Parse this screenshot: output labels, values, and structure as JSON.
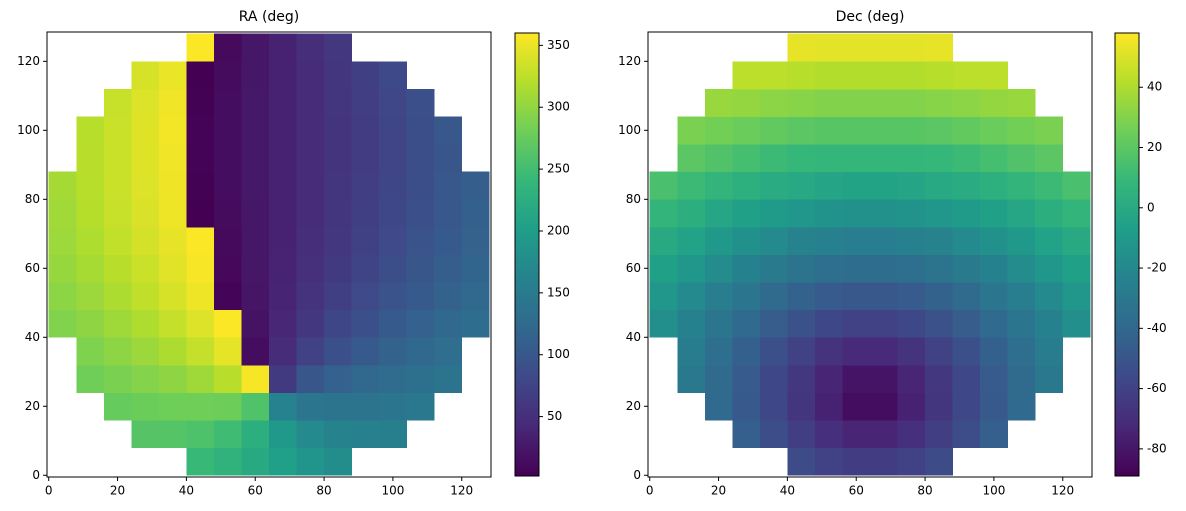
{
  "chart_data": [
    {
      "type": "heatmap",
      "title": "RA (deg)",
      "x": [
        4,
        12,
        20,
        28,
        36,
        44,
        52,
        60,
        68,
        76,
        84,
        92,
        100,
        108,
        116,
        124
      ],
      "y": [
        4,
        12,
        20,
        28,
        36,
        44,
        52,
        60,
        68,
        76,
        84,
        92,
        100,
        108,
        116,
        124
      ],
      "values": [
        [
          null,
          null,
          null,
          null,
          null,
          243,
          233,
          218,
          202,
          187,
          177,
          null,
          null,
          null,
          null,
          null
        ],
        [
          null,
          null,
          null,
          264,
          263,
          258,
          248,
          226,
          194,
          172,
          162,
          158,
          156,
          null,
          null,
          null
        ],
        [
          null,
          null,
          275,
          278,
          280,
          281,
          279,
          259,
          161,
          141,
          139,
          140,
          142,
          146,
          null,
          null
        ],
        [
          null,
          281,
          287,
          293,
          299,
          308,
          322,
          356,
          64,
          98,
          112,
          121,
          128,
          134,
          139,
          null
        ],
        [
          null,
          290,
          298,
          306,
          316,
          329,
          347,
          14,
          46,
          73,
          91,
          104,
          114,
          122,
          130,
          null
        ],
        [
          291,
          299,
          308,
          317,
          329,
          342,
          359,
          19,
          41,
          61,
          78,
          91,
          103,
          112,
          121,
          129
        ],
        [
          297,
          306,
          316,
          326,
          338,
          351,
          5,
          22,
          38,
          55,
          69,
          83,
          94,
          104,
          114,
          123
        ],
        [
          303,
          312,
          322,
          332,
          344,
          356,
          9,
          23,
          37,
          51,
          64,
          76,
          88,
          98,
          108,
          117
        ],
        [
          307,
          317,
          327,
          337,
          348,
          359,
          11,
          24,
          36,
          49,
          61,
          72,
          83,
          94,
          104,
          113
        ],
        [
          309,
          320,
          330,
          340,
          351,
          2,
          13,
          24,
          36,
          47,
          58,
          69,
          80,
          90,
          100,
          111
        ],
        [
          311,
          321,
          332,
          342,
          352,
          3,
          14,
          25,
          35,
          46,
          57,
          68,
          78,
          88,
          99,
          109
        ],
        [
          null,
          322,
          332,
          343,
          353,
          4,
          14,
          25,
          35,
          46,
          56,
          67,
          77,
          88,
          98,
          null
        ],
        [
          null,
          321,
          332,
          343,
          354,
          4,
          14,
          25,
          35,
          46,
          56,
          67,
          77,
          88,
          99,
          null
        ],
        [
          null,
          null,
          330,
          342,
          353,
          3,
          14,
          25,
          35,
          46,
          57,
          68,
          79,
          90,
          null,
          null
        ],
        [
          null,
          null,
          null,
          338,
          350,
          2,
          13,
          24,
          36,
          47,
          58,
          70,
          82,
          null,
          null,
          null
        ],
        [
          null,
          null,
          null,
          null,
          null,
          359,
          11,
          24,
          36,
          49,
          61,
          null,
          null,
          null,
          null,
          null
        ]
      ],
      "xlim": [
        -0.5,
        128.5
      ],
      "ylim": [
        -0.5,
        128.5
      ],
      "xticks": [
        0,
        20,
        40,
        60,
        80,
        100,
        120
      ],
      "yticks": [
        0,
        20,
        40,
        60,
        80,
        100,
        120
      ],
      "colorbar": {
        "lim": [
          2,
          360
        ],
        "ticks": [
          50,
          100,
          150,
          200,
          250,
          300,
          350
        ]
      },
      "colormap": [
        "#440154",
        "#482878",
        "#3e4989",
        "#31688e",
        "#26828e",
        "#1f9e89",
        "#35b779",
        "#6ece58",
        "#b5de2b",
        "#fde725"
      ]
    },
    {
      "type": "heatmap",
      "title": "Dec (deg)",
      "x": [
        4,
        12,
        20,
        28,
        36,
        44,
        52,
        60,
        68,
        76,
        84,
        92,
        100,
        108,
        116,
        124
      ],
      "y": [
        4,
        12,
        20,
        28,
        36,
        44,
        52,
        60,
        68,
        76,
        84,
        92,
        100,
        108,
        116,
        124
      ],
      "values": [
        [
          null,
          null,
          null,
          null,
          null,
          -55,
          -60,
          -63,
          -63,
          -60,
          -55,
          null,
          null,
          null,
          null,
          null
        ],
        [
          null,
          null,
          null,
          -45,
          -54,
          -62,
          -69,
          -74,
          -74,
          -69,
          -62,
          -54,
          -45,
          null,
          null,
          null
        ],
        [
          null,
          null,
          -39,
          -48,
          -57,
          -66,
          -75,
          -84,
          -84,
          -75,
          -66,
          -57,
          -48,
          -39,
          null,
          null
        ],
        [
          null,
          -30,
          -38,
          -47,
          -57,
          -65,
          -74,
          -81,
          -81,
          -74,
          -65,
          -57,
          -47,
          -38,
          -30,
          null
        ],
        [
          null,
          -28,
          -36,
          -44,
          -53,
          -60,
          -67,
          -71,
          -71,
          -67,
          -60,
          -53,
          -44,
          -36,
          -28,
          null
        ],
        [
          -16,
          -24,
          -32,
          -39,
          -46,
          -52,
          -57,
          -60,
          -60,
          -57,
          -52,
          -46,
          -39,
          -32,
          -24,
          -16
        ],
        [
          -12,
          -19,
          -26,
          -32,
          -38,
          -43,
          -47,
          -49,
          -49,
          -47,
          -43,
          -38,
          -32,
          -26,
          -19,
          -12
        ],
        [
          -6,
          -12,
          -18,
          -24,
          -29,
          -33,
          -36,
          -37,
          -37,
          -36,
          -33,
          -29,
          -24,
          -18,
          -12,
          -6
        ],
        [
          0,
          -5,
          -10,
          -15,
          -19,
          -23,
          -25,
          -26,
          -26,
          -25,
          -23,
          -19,
          -15,
          -10,
          -5,
          0
        ],
        [
          7,
          3,
          -2,
          -6,
          -9,
          -12,
          -14,
          -15,
          -15,
          -14,
          -12,
          -9,
          -6,
          -2,
          3,
          7
        ],
        [
          15,
          11,
          7,
          4,
          1,
          -1,
          -3,
          -4,
          -4,
          -3,
          -1,
          1,
          4,
          7,
          11,
          15
        ],
        [
          null,
          20,
          17,
          14,
          11,
          9,
          8,
          8,
          8,
          8,
          9,
          11,
          14,
          17,
          20,
          null
        ],
        [
          null,
          28,
          26,
          24,
          22,
          20,
          19,
          19,
          19,
          19,
          20,
          22,
          24,
          26,
          28,
          null
        ],
        [
          null,
          null,
          35,
          34,
          32,
          31,
          30,
          30,
          30,
          30,
          31,
          32,
          34,
          35,
          null,
          null
        ],
        [
          null,
          null,
          null,
          43,
          43,
          42,
          41,
          41,
          41,
          41,
          42,
          43,
          43,
          null,
          null,
          null
        ],
        [
          null,
          null,
          null,
          null,
          null,
          53,
          52,
          52,
          52,
          52,
          53,
          null,
          null,
          null,
          null,
          null
        ]
      ],
      "xlim": [
        -0.5,
        128.5
      ],
      "ylim": [
        -0.5,
        128.5
      ],
      "xticks": [
        0,
        20,
        40,
        60,
        80,
        100,
        120
      ],
      "yticks": [
        0,
        20,
        40,
        60,
        80,
        100,
        120
      ],
      "colorbar": {
        "lim": [
          -89,
          58
        ],
        "ticks": [
          -80,
          -60,
          -40,
          -20,
          0,
          20,
          40
        ]
      },
      "colormap": [
        "#440154",
        "#482878",
        "#3e4989",
        "#31688e",
        "#26828e",
        "#1f9e89",
        "#35b779",
        "#6ece58",
        "#b5de2b",
        "#fde725"
      ]
    }
  ]
}
